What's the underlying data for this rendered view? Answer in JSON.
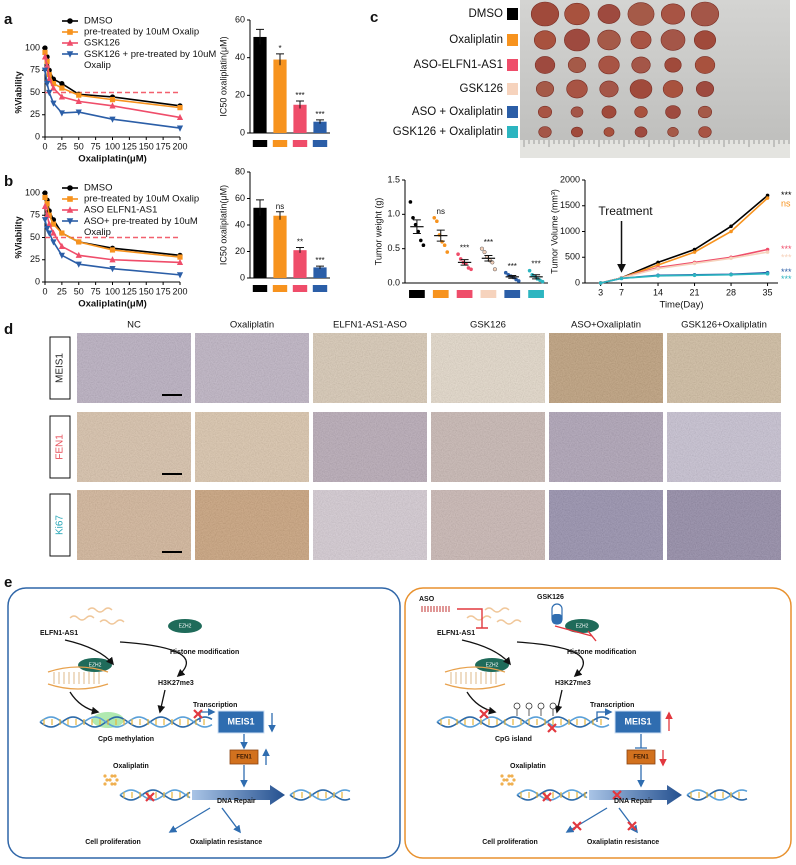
{
  "panel_labels": [
    "a",
    "b",
    "c",
    "d",
    "e"
  ],
  "chart_data": [
    {
      "type": "line",
      "xlabel": "Oxaliplatin(μM)",
      "ylabel": "%Viability",
      "x": [
        0,
        3.125,
        6.25,
        12.5,
        25,
        50,
        100,
        200
      ],
      "xlim": [
        0,
        200
      ],
      "xticks": [
        0,
        25,
        50,
        75,
        100,
        125,
        150,
        175,
        200
      ],
      "ylim": [
        0,
        100
      ],
      "yticks": [
        0,
        25,
        50,
        75,
        100
      ],
      "hline": 50,
      "hline_color": "#f2606e",
      "legend": "top",
      "series": [
        {
          "name": "DMSO",
          "color": "#000000",
          "marker": "circle",
          "values": [
            100,
            90,
            75,
            65,
            60,
            48,
            45,
            35
          ]
        },
        {
          "name": "pre-treated by 10uM Oxalip",
          "color": "#f7931e",
          "marker": "square",
          "values": [
            95,
            85,
            70,
            60,
            55,
            47,
            42,
            33
          ]
        },
        {
          "name": "GSK126",
          "color": "#ef4d6a",
          "marker": "triangle",
          "values": [
            90,
            80,
            65,
            55,
            45,
            40,
            35,
            22
          ]
        },
        {
          "name": "GSK126 + pre-treated by 10uM Oxalip",
          "color": "#2b5ea7",
          "marker": "triangle-down",
          "values": [
            75,
            60,
            50,
            38,
            27,
            28,
            20,
            10
          ]
        }
      ]
    },
    {
      "type": "bar",
      "ylabel": "IC50 oxaliplatin(μM)",
      "categories": [
        null,
        null,
        null,
        null
      ],
      "values": [
        51,
        39,
        15,
        6
      ],
      "errors": [
        4,
        3,
        2,
        1
      ],
      "annotations": [
        null,
        "*",
        "***",
        "***"
      ],
      "colors": [
        "#000000",
        "#f7931e",
        "#ef4d6a",
        "#2b5ea7"
      ],
      "ylim": [
        0,
        60
      ],
      "yticks": [
        0,
        20,
        40,
        60
      ]
    },
    {
      "type": "line",
      "xlabel": "Oxaliplatin(μM)",
      "ylabel": "%Viability",
      "x": [
        0,
        3.125,
        6.25,
        12.5,
        25,
        50,
        100,
        200
      ],
      "xlim": [
        0,
        200
      ],
      "xticks": [
        0,
        25,
        50,
        75,
        100,
        125,
        150,
        175,
        200
      ],
      "ylim": [
        0,
        100
      ],
      "yticks": [
        0,
        25,
        50,
        75,
        100
      ],
      "hline": 50,
      "hline_color": "#f2606e",
      "legend": "top",
      "series": [
        {
          "name": "DMSO",
          "color": "#000000",
          "marker": "circle",
          "values": [
            100,
            92,
            80,
            70,
            55,
            45,
            38,
            30
          ]
        },
        {
          "name": "pre-treated by 10uM Oxalip",
          "color": "#f7931e",
          "marker": "square",
          "values": [
            95,
            88,
            75,
            65,
            55,
            45,
            36,
            28
          ]
        },
        {
          "name": "ASO ELFN1-AS1",
          "color": "#ef4d6a",
          "marker": "triangle",
          "values": [
            85,
            75,
            65,
            55,
            40,
            30,
            25,
            22
          ]
        },
        {
          "name": "ASO+ pre-treated by 10uM Oxalip",
          "color": "#2b5ea7",
          "marker": "triangle-down",
          "values": [
            70,
            60,
            55,
            45,
            30,
            20,
            15,
            8
          ]
        }
      ]
    },
    {
      "type": "bar",
      "ylabel": "IC50 oxaliplatin(μM)",
      "categories": [
        null,
        null,
        null,
        null
      ],
      "values": [
        53,
        47,
        21,
        8
      ],
      "errors": [
        6,
        3,
        2,
        1
      ],
      "annotations": [
        null,
        "ns",
        "**",
        "***"
      ],
      "colors": [
        "#000000",
        "#f7931e",
        "#ef4d6a",
        "#2b5ea7"
      ],
      "ylim": [
        0,
        80
      ],
      "yticks": [
        0,
        20,
        40,
        60,
        80
      ]
    },
    {
      "type": "dot",
      "ylabel": "Tumor weight (g)",
      "categories": [
        null,
        null,
        null,
        null,
        null,
        null
      ],
      "values": [
        0.82,
        0.69,
        0.3,
        0.36,
        0.09,
        0.09
      ],
      "errors": [
        0.1,
        0.08,
        0.04,
        0.04,
        0.02,
        0.03
      ],
      "points": [
        [
          1.18,
          0.95,
          0.85,
          0.75,
          0.62,
          0.55
        ],
        [
          0.95,
          0.9,
          0.7,
          0.6,
          0.55,
          0.45
        ],
        [
          0.42,
          0.35,
          0.3,
          0.28,
          0.22,
          0.2
        ],
        [
          0.5,
          0.45,
          0.38,
          0.33,
          0.3,
          0.2
        ],
        [
          0.15,
          0.12,
          0.1,
          0.08,
          0.05,
          0.03
        ],
        [
          0.18,
          0.12,
          0.1,
          0.06,
          0.04,
          0.02
        ]
      ],
      "annotations": [
        null,
        "ns",
        "***",
        "***",
        "***",
        "***"
      ],
      "colors": [
        "#000000",
        "#f7931e",
        "#ef4d6a",
        "#f6d3bd",
        "#2b5ea7",
        "#2cb5c0"
      ],
      "ylim": [
        0,
        1.5
      ],
      "yticks": [
        {
          "value": 0,
          "label": "0.0"
        },
        {
          "value": 0.5,
          "label": "0.5"
        },
        {
          "value": 1,
          "label": "1.0"
        },
        {
          "value": 1.5,
          "label": "1.5"
        }
      ]
    },
    {
      "type": "line",
      "xlabel": "Time(Day)",
      "ylabel": "Tumor Volume (mm³)",
      "x": [
        3,
        7,
        14,
        21,
        28,
        35
      ],
      "xlim": [
        0,
        37
      ],
      "xticks": [
        3,
        7,
        14,
        21,
        28,
        35
      ],
      "ylim": [
        0,
        2000
      ],
      "yticks": [
        0,
        500,
        1000,
        1500,
        2000
      ],
      "annotation": {
        "text": "Treatment",
        "x": 7
      },
      "series": [
        {
          "color": "#000000",
          "marker": "circle",
          "values": [
            0,
            100,
            400,
            650,
            1100,
            1700
          ],
          "end_label": "***"
        },
        {
          "color": "#f7931e",
          "marker": "circle",
          "values": [
            0,
            100,
            350,
            600,
            1000,
            1650
          ],
          "end_label": "ns"
        },
        {
          "color": "#ef4d6a",
          "marker": "circle",
          "values": [
            0,
            100,
            300,
            400,
            500,
            650
          ],
          "end_label": "***"
        },
        {
          "color": "#f6d3bd",
          "marker": "circle",
          "values": [
            0,
            100,
            280,
            380,
            480,
            600
          ],
          "end_label": "***"
        },
        {
          "color": "#2b5ea7",
          "marker": "circle",
          "values": [
            0,
            90,
            150,
            160,
            170,
            200
          ],
          "end_label": "***"
        },
        {
          "color": "#2cb5c0",
          "marker": "circle",
          "values": [
            0,
            90,
            140,
            150,
            160,
            180
          ],
          "end_label": "***"
        }
      ]
    }
  ],
  "tumor_photo": {
    "groups": [
      "DMSO",
      "Oxaliplatin",
      "ASO-ELFN1-AS1",
      "GSK126",
      "ASO + Oxaliplatin",
      "GSK126 + Oxaliplatin"
    ],
    "colors": [
      "#000000",
      "#f7931e",
      "#ef4d6a",
      "#f6d3bd",
      "#2b5ea7",
      "#2cb5c0"
    ]
  },
  "ihc": {
    "columns": [
      "NC",
      "Oxaliplatin",
      "ELFN1-AS1-ASO",
      "GSK126",
      "ASO+Oxaliplatin",
      "GSK126+Oxaliplatin"
    ],
    "rows": [
      {
        "label": "MEIS1",
        "color": "#222222"
      },
      {
        "label": "FEN1",
        "color": "#e8505b"
      },
      {
        "label": "Ki67",
        "color": "#2aa7b8"
      }
    ]
  },
  "diagram": {
    "left": {
      "lncrna": "ELFN1-AS1",
      "ezh2": "EZH2",
      "histone": "Histone modification",
      "mark": "H3K27me3",
      "transcription": "Transcription",
      "gene": "MEIS1",
      "cpg": "CpG methylation",
      "fen1": "FEN1",
      "drug": "Oxaliplatin",
      "repair": "DNA Repair",
      "proliferation": "Cell proliferation",
      "resistance": "Oxaliplatin  resistance"
    },
    "right": {
      "aso": "ASO",
      "gsk126": "GSK126",
      "lncrna": "ELFN1-AS1",
      "ezh2": "EZH2",
      "histone": "Histone modification",
      "mark": "H3K27me3",
      "transcription": "Transcription",
      "gene": "MEIS1",
      "cpg": "CpG island",
      "fen1": "FEN1",
      "drug": "Oxaliplatin",
      "repair": "DNA Repair",
      "proliferation": "Cell proliferation",
      "resistance": "Oxaliplatin  resistance"
    }
  }
}
